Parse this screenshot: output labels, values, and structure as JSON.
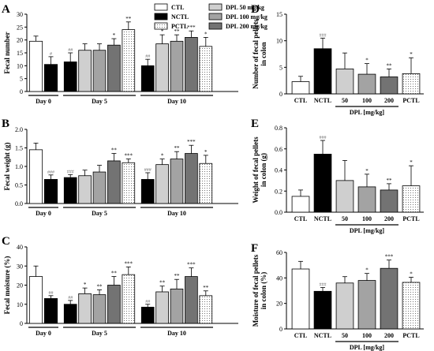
{
  "legend": [
    {
      "label": "CTL",
      "color": "#ffffff",
      "pattern": "none"
    },
    {
      "label": "NCTL",
      "color": "#000000",
      "pattern": "none"
    },
    {
      "label": "PCTL",
      "color": "#ffffff",
      "pattern": "dots"
    },
    {
      "label": "DPL 50 mg/kg",
      "color": "#cfcfcf",
      "pattern": "none"
    },
    {
      "label": "DPL 100 mg/kg",
      "color": "#a3a3a3",
      "pattern": "none"
    },
    {
      "label": "DPL 200 mg/kg",
      "color": "#737373",
      "pattern": "none"
    }
  ],
  "chart_data": [
    {
      "panel": "A",
      "type": "bar",
      "ylabel": "Fecal number",
      "ylim": [
        0,
        30
      ],
      "yticks": [
        0,
        5,
        10,
        15,
        20,
        25,
        30
      ],
      "groups": [
        {
          "label": "Day 0",
          "bars": [
            {
              "series": "CTL",
              "value": 19.5,
              "err": 2.0,
              "sig": ""
            },
            {
              "series": "NCTL",
              "value": 10.5,
              "err": 3.0,
              "sig": "#"
            }
          ]
        },
        {
          "label": "Day 5",
          "bars": [
            {
              "series": "NCTL",
              "value": 11.5,
              "err": 3.5,
              "sig": "##"
            },
            {
              "series": "DPL 50 mg/kg",
              "value": 16.0,
              "err": 2.5,
              "sig": ""
            },
            {
              "series": "DPL 100 mg/kg",
              "value": 16.0,
              "err": 2.5,
              "sig": ""
            },
            {
              "series": "DPL 200 mg/kg",
              "value": 18.0,
              "err": 2.5,
              "sig": "*"
            },
            {
              "series": "PCTL",
              "value": 24.0,
              "err": 3.0,
              "sig": "**"
            }
          ]
        },
        {
          "label": "Day 10",
          "bars": [
            {
              "series": "NCTL",
              "value": 10.0,
              "err": 2.5,
              "sig": "##"
            },
            {
              "series": "DPL 50 mg/kg",
              "value": 18.5,
              "err": 3.5,
              "sig": "*"
            },
            {
              "series": "DPL 100 mg/kg",
              "value": 19.5,
              "err": 2.5,
              "sig": "**"
            },
            {
              "series": "DPL 200 mg/kg",
              "value": 21.0,
              "err": 2.5,
              "sig": "***"
            },
            {
              "series": "PCTL",
              "value": 17.5,
              "err": 3.5,
              "sig": "*"
            }
          ]
        }
      ]
    },
    {
      "panel": "B",
      "type": "bar",
      "ylabel": "Fecal weight (g)",
      "ylim": [
        0,
        2.0
      ],
      "yticks": [
        0.0,
        0.5,
        1.0,
        1.5,
        2.0
      ],
      "tick_decimals": 1,
      "groups": [
        {
          "label": "Day 0",
          "bars": [
            {
              "series": "CTL",
              "value": 1.45,
              "err": 0.18,
              "sig": ""
            },
            {
              "series": "NCTL",
              "value": 0.65,
              "err": 0.12,
              "sig": "###"
            }
          ]
        },
        {
          "label": "Day 5",
          "bars": [
            {
              "series": "NCTL",
              "value": 0.7,
              "err": 0.08,
              "sig": "###"
            },
            {
              "series": "DPL 50 mg/kg",
              "value": 0.75,
              "err": 0.15,
              "sig": ""
            },
            {
              "series": "DPL 100 mg/kg",
              "value": 0.85,
              "err": 0.18,
              "sig": ""
            },
            {
              "series": "DPL 200 mg/kg",
              "value": 1.15,
              "err": 0.2,
              "sig": "**"
            },
            {
              "series": "PCTL",
              "value": 1.1,
              "err": 0.1,
              "sig": "***"
            }
          ]
        },
        {
          "label": "Day 10",
          "bars": [
            {
              "series": "NCTL",
              "value": 0.65,
              "err": 0.18,
              "sig": "###"
            },
            {
              "series": "DPL 50 mg/kg",
              "value": 1.05,
              "err": 0.15,
              "sig": "*"
            },
            {
              "series": "DPL 100 mg/kg",
              "value": 1.2,
              "err": 0.2,
              "sig": "**"
            },
            {
              "series": "DPL 200 mg/kg",
              "value": 1.35,
              "err": 0.22,
              "sig": "***"
            },
            {
              "series": "PCTL",
              "value": 1.08,
              "err": 0.22,
              "sig": "*"
            }
          ]
        }
      ]
    },
    {
      "panel": "C",
      "type": "bar",
      "ylabel": "Fecal moisture (%)",
      "ylim": [
        0,
        40
      ],
      "yticks": [
        0,
        10,
        20,
        30,
        40
      ],
      "groups": [
        {
          "label": "Day 0",
          "bars": [
            {
              "series": "CTL",
              "value": 24.5,
              "err": 5.5,
              "sig": ""
            },
            {
              "series": "NCTL",
              "value": 13.0,
              "err": 1.5,
              "sig": "##"
            }
          ]
        },
        {
          "label": "Day 5",
          "bars": [
            {
              "series": "NCTL",
              "value": 10.0,
              "err": 2.0,
              "sig": "##"
            },
            {
              "series": "DPL 50 mg/kg",
              "value": 15.5,
              "err": 3.0,
              "sig": "*"
            },
            {
              "series": "DPL 100 mg/kg",
              "value": 15.0,
              "err": 2.5,
              "sig": "**"
            },
            {
              "series": "DPL 200 mg/kg",
              "value": 20.0,
              "err": 4.5,
              "sig": "**"
            },
            {
              "series": "PCTL",
              "value": 25.5,
              "err": 4.0,
              "sig": "***"
            }
          ]
        },
        {
          "label": "Day 10",
          "bars": [
            {
              "series": "NCTL",
              "value": 8.5,
              "err": 1.5,
              "sig": "##"
            },
            {
              "series": "DPL 50 mg/kg",
              "value": 16.5,
              "err": 3.0,
              "sig": "**"
            },
            {
              "series": "DPL 100 mg/kg",
              "value": 18.0,
              "err": 5.0,
              "sig": "**"
            },
            {
              "series": "DPL 200 mg/kg",
              "value": 24.5,
              "err": 4.5,
              "sig": "***"
            },
            {
              "series": "PCTL",
              "value": 14.5,
              "err": 2.5,
              "sig": "**"
            }
          ]
        }
      ]
    },
    {
      "panel": "D",
      "type": "bar",
      "ylabel": "Number of fecal pellets in colon",
      "ylim": [
        0,
        15
      ],
      "yticks": [
        0,
        5,
        10,
        15
      ],
      "categories": [
        "CTL",
        "NCTL",
        "50",
        "100",
        "200",
        "PCTL"
      ],
      "dpl_label": "DPL [mg/kg]",
      "bars": [
        {
          "series": "CTL",
          "value": 2.3,
          "err": 1.0,
          "sig": ""
        },
        {
          "series": "NCTL",
          "value": 8.5,
          "err": 2.0,
          "sig": "###"
        },
        {
          "series": "DPL 50 mg/kg",
          "value": 4.7,
          "err": 3.0,
          "sig": ""
        },
        {
          "series": "DPL 100 mg/kg",
          "value": 3.7,
          "err": 2.0,
          "sig": "*"
        },
        {
          "series": "DPL 200 mg/kg",
          "value": 3.2,
          "err": 1.5,
          "sig": "**"
        },
        {
          "series": "PCTL",
          "value": 3.8,
          "err": 3.0,
          "sig": "*"
        }
      ]
    },
    {
      "panel": "E",
      "type": "bar",
      "ylabel": "Weight of fecal pellets in colon (g)",
      "ylim": [
        0,
        0.8
      ],
      "yticks": [
        0.0,
        0.2,
        0.4,
        0.6,
        0.8
      ],
      "tick_decimals": 1,
      "categories": [
        "CTL",
        "NCTL",
        "50",
        "100",
        "200",
        "PCTL"
      ],
      "dpl_label": "DPL [mg/kg]",
      "bars": [
        {
          "series": "CTL",
          "value": 0.15,
          "err": 0.06,
          "sig": ""
        },
        {
          "series": "NCTL",
          "value": 0.55,
          "err": 0.13,
          "sig": "###"
        },
        {
          "series": "DPL 50 mg/kg",
          "value": 0.3,
          "err": 0.19,
          "sig": ""
        },
        {
          "series": "DPL 100 mg/kg",
          "value": 0.24,
          "err": 0.12,
          "sig": "*"
        },
        {
          "series": "DPL 200 mg/kg",
          "value": 0.21,
          "err": 0.06,
          "sig": "**"
        },
        {
          "series": "PCTL",
          "value": 0.25,
          "err": 0.19,
          "sig": "*"
        }
      ]
    },
    {
      "panel": "F",
      "type": "bar",
      "ylabel": "Moisture of fecal pellets in colon (%)",
      "ylim": [
        0,
        60
      ],
      "yticks": [
        0,
        20,
        40,
        60
      ],
      "categories": [
        "CTL",
        "NCTL",
        "50",
        "100",
        "200",
        "PCTL"
      ],
      "dpl_label": "DPL [mg/kg]",
      "bars": [
        {
          "series": "CTL",
          "value": 47.0,
          "err": 6.0,
          "sig": ""
        },
        {
          "series": "NCTL",
          "value": 29.5,
          "err": 3.0,
          "sig": "###"
        },
        {
          "series": "DPL 50 mg/kg",
          "value": 36.0,
          "err": 5.0,
          "sig": ""
        },
        {
          "series": "DPL 100 mg/kg",
          "value": 38.0,
          "err": 5.5,
          "sig": "*"
        },
        {
          "series": "DPL 200 mg/kg",
          "value": 47.5,
          "err": 6.5,
          "sig": "***"
        },
        {
          "series": "PCTL",
          "value": 36.5,
          "err": 4.0,
          "sig": "*"
        }
      ]
    }
  ]
}
